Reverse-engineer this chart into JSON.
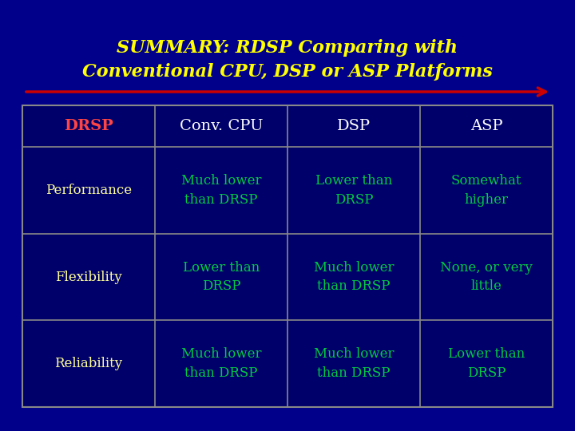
{
  "title_line1": "SUMMARY: RDSP Comparing with",
  "title_line2": "Conventional CPU, DSP or ASP Platforms",
  "title_color": "#FFFF00",
  "bg_color": "#00008B",
  "header_row": [
    "DRSP",
    "Conv. CPU",
    "DSP",
    "ASP"
  ],
  "header_drsp_color": "#FF4444",
  "header_other_color": "#FFFFFF",
  "row_label_color": "#FFFF99",
  "cell_color": "#00CC44",
  "rows": [
    {
      "label": "Performance",
      "cells": [
        "Much lower\nthan DRSP",
        "Lower than\nDRSP",
        "Somewhat\nhigher"
      ]
    },
    {
      "label": "Flexibility",
      "cells": [
        "Lower than\nDRSP",
        "Much lower\nthan DRSP",
        "None, or very\nlittle"
      ]
    },
    {
      "label": "Reliability",
      "cells": [
        "Much lower\nthan DRSP",
        "Much lower\nthan DRSP",
        "Lower than\nDRSP"
      ]
    }
  ],
  "arrow_color": "#CC0000",
  "border_color": "#888888",
  "table_facecolor": "#00006A"
}
